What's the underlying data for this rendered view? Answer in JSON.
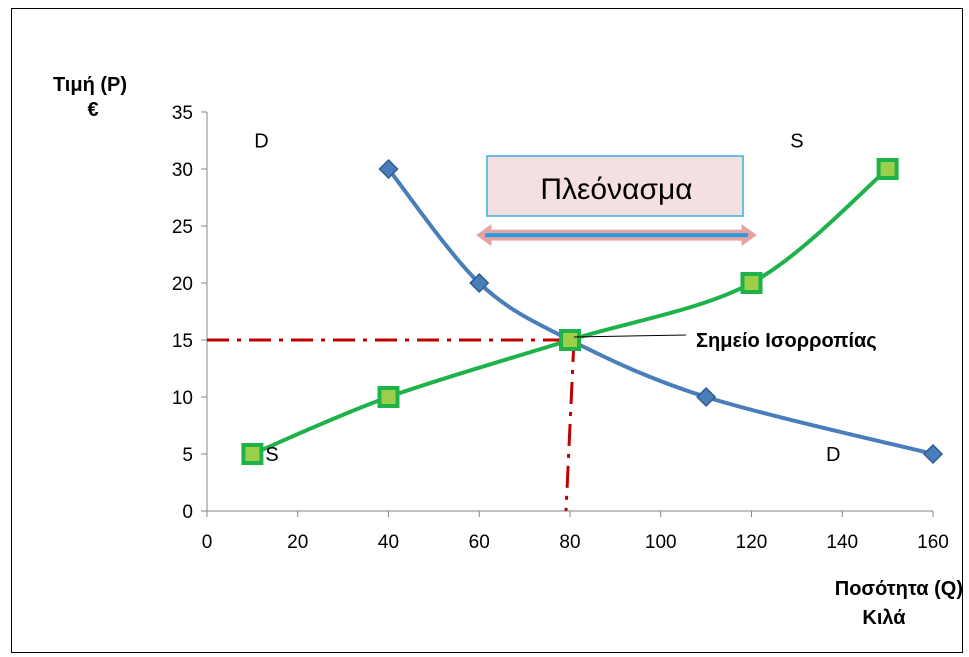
{
  "chart_data": {
    "type": "line",
    "ylabel_lines": [
      "Τιμή (P)",
      "€"
    ],
    "xlabel_lines": [
      "Ποσότητα (Q)",
      "Κιλά"
    ],
    "xlim": [
      0,
      160
    ],
    "ylim": [
      0,
      35
    ],
    "xticks": [
      0,
      20,
      40,
      60,
      80,
      100,
      120,
      140,
      160
    ],
    "yticks": [
      0,
      5,
      10,
      15,
      20,
      25,
      30,
      35
    ],
    "grid": false,
    "series": [
      {
        "name": "D",
        "color": "#4a7ebb",
        "marker": "diamond",
        "points": [
          [
            40,
            30
          ],
          [
            60,
            20
          ],
          [
            80,
            15
          ],
          [
            110,
            10
          ],
          [
            160,
            5
          ]
        ]
      },
      {
        "name": "S",
        "color": "#1db34a",
        "marker": "square",
        "points": [
          [
            10,
            5
          ],
          [
            40,
            10
          ],
          [
            80,
            15
          ],
          [
            120,
            20
          ],
          [
            150,
            30
          ]
        ]
      }
    ],
    "curve_labels": [
      {
        "text": "D",
        "x": 12,
        "y": 32.5
      },
      {
        "text": "S",
        "x": 130,
        "y": 32.5
      },
      {
        "text": "S",
        "x": 15,
        "y": 5
      },
      {
        "text": "D",
        "x": 138,
        "y": 5
      }
    ],
    "equilibrium": {
      "label": "Σημείο Ισορροπίας",
      "x": 80,
      "y": 15,
      "color": "#c00000"
    },
    "surplus": {
      "label": "Πλεόνασμα",
      "y": 24.2,
      "x_from": 59.5,
      "x_to": 121
    }
  }
}
